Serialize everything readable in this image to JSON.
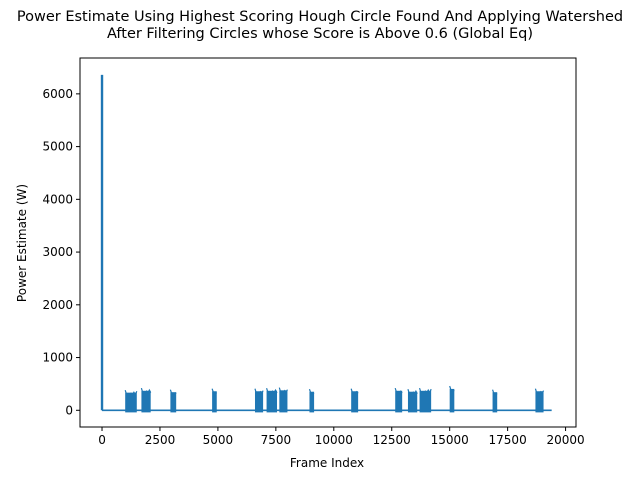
{
  "chart_data": {
    "type": "line",
    "title_line1": "Power Estimate Using Highest Scoring Hough Circle Found And Applying Watershed",
    "title_line2": "After Filtering Circles whose Score is Above 0.6 (Global Eq)",
    "xlabel": "Frame Index",
    "ylabel": "Power Estimate (W)",
    "xlim": [
      -950,
      20450
    ],
    "ylim": [
      -317,
      6680
    ],
    "xticks": [
      0,
      2500,
      5000,
      7500,
      10000,
      12500,
      15000,
      17500,
      20000
    ],
    "xtick_labels": [
      "0",
      "2500",
      "5000",
      "7500",
      "10000",
      "12500",
      "15000",
      "17500",
      "20000"
    ],
    "yticks": [
      0,
      1000,
      2000,
      3000,
      4000,
      5000,
      6000
    ],
    "ytick_labels": [
      "0",
      "1000",
      "2000",
      "3000",
      "4000",
      "5000",
      "6000"
    ],
    "grid": false,
    "line_color": "#1f77b4",
    "series": [
      {
        "name": "Power Estimate",
        "x_start": 0,
        "x_end": 19400,
        "baseline": 0,
        "spike": {
          "x": 0,
          "value": 6360
        },
        "bursts": [
          {
            "start": 1000,
            "end": 1500,
            "max": 380
          },
          {
            "start": 1700,
            "end": 2100,
            "max": 420
          },
          {
            "start": 2950,
            "end": 3200,
            "max": 390
          },
          {
            "start": 4750,
            "end": 4950,
            "max": 410
          },
          {
            "start": 6600,
            "end": 6950,
            "max": 410
          },
          {
            "start": 7100,
            "end": 7550,
            "max": 420
          },
          {
            "start": 7650,
            "end": 8000,
            "max": 430
          },
          {
            "start": 8950,
            "end": 9150,
            "max": 400
          },
          {
            "start": 10750,
            "end": 11050,
            "max": 410
          },
          {
            "start": 12650,
            "end": 12950,
            "max": 420
          },
          {
            "start": 13200,
            "end": 13600,
            "max": 400
          },
          {
            "start": 13700,
            "end": 14200,
            "max": 420
          },
          {
            "start": 15000,
            "end": 15200,
            "max": 460
          },
          {
            "start": 16850,
            "end": 17050,
            "max": 390
          },
          {
            "start": 18700,
            "end": 19050,
            "max": 410
          }
        ]
      }
    ]
  }
}
